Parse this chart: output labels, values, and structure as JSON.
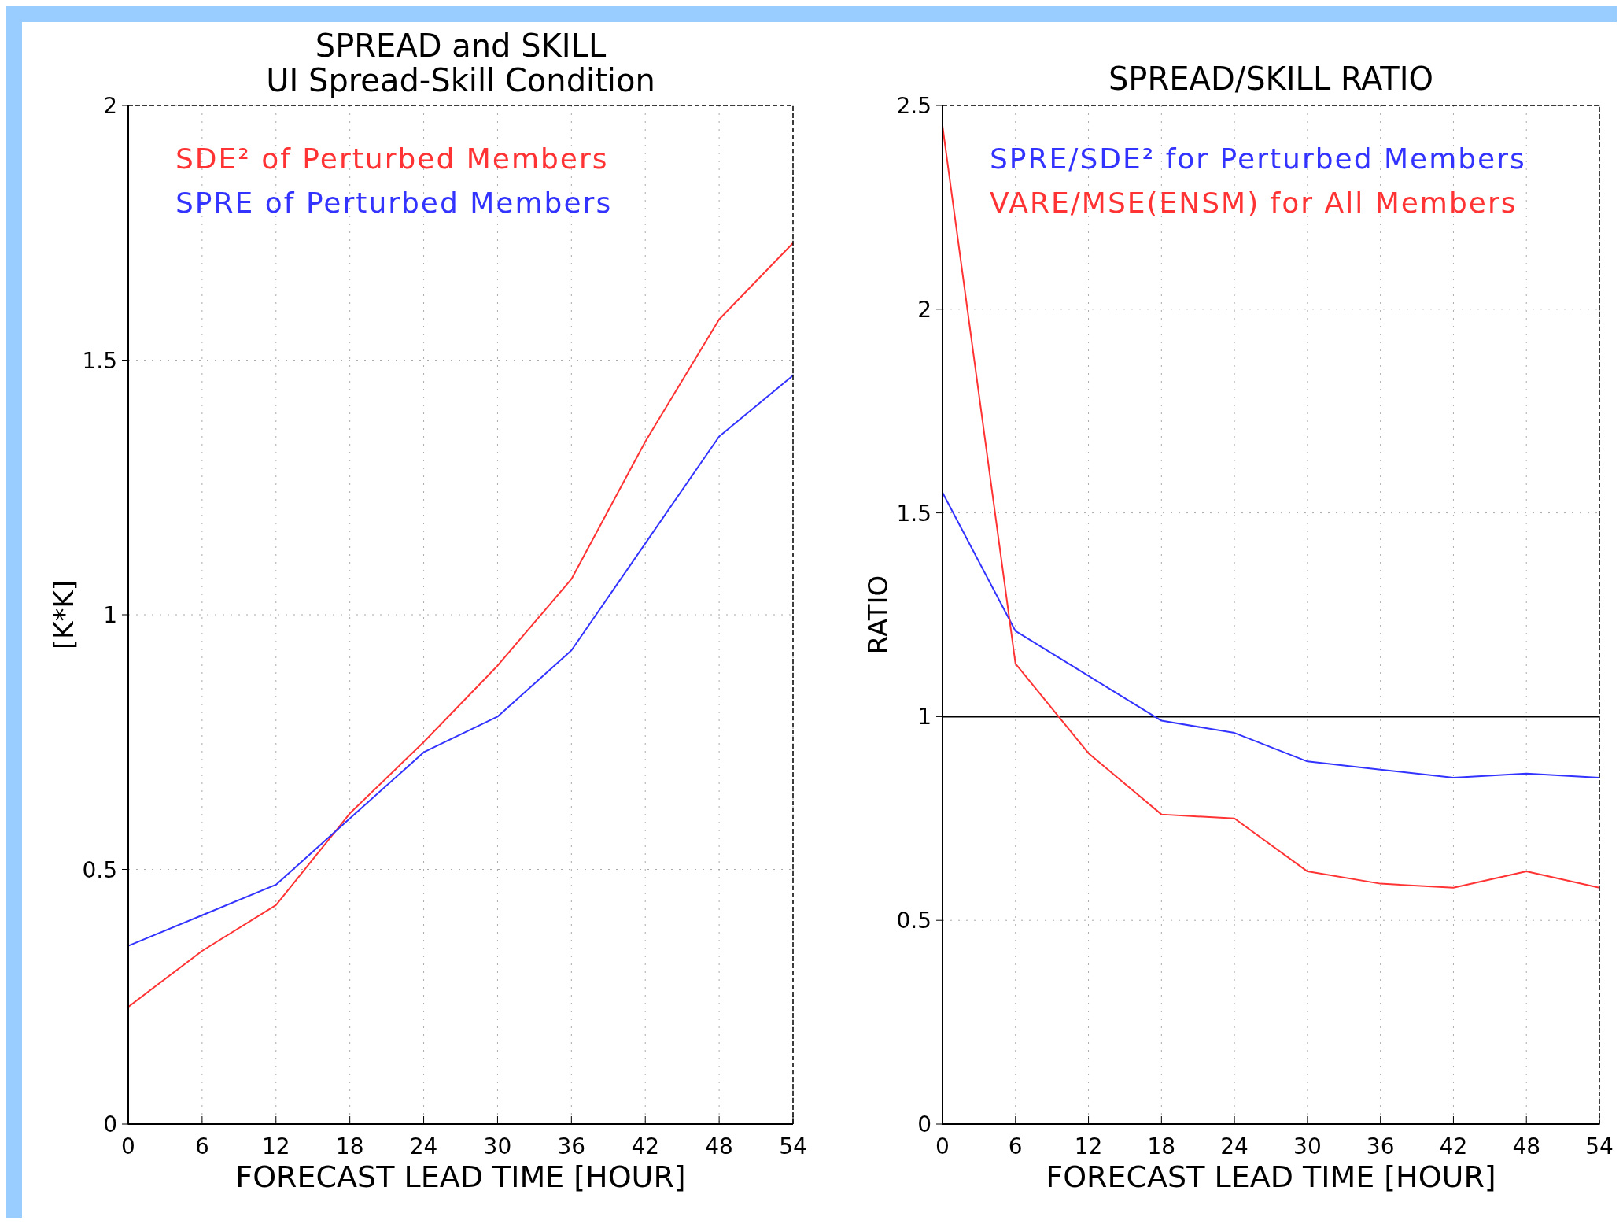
{
  "chart_data": [
    {
      "type": "line",
      "title": "SPREAD and SKILL",
      "subtitle": "UI Spread-Skill Condition",
      "xlabel": "FORECAST LEAD TIME [HOUR]",
      "ylabel": "[K*K]",
      "x": [
        0,
        6,
        12,
        18,
        24,
        30,
        36,
        42,
        48,
        54
      ],
      "series": [
        {
          "name": "SDE² of Perturbed Members",
          "color": "#ff3333",
          "values": [
            0.23,
            0.34,
            0.43,
            0.61,
            0.75,
            0.9,
            1.07,
            1.34,
            1.58,
            1.73
          ]
        },
        {
          "name": "SPRE of Perturbed Members",
          "color": "#3333ff",
          "values": [
            0.35,
            0.41,
            0.47,
            0.6,
            0.73,
            0.8,
            0.93,
            1.14,
            1.35,
            1.47
          ]
        }
      ],
      "xlim": [
        0,
        54
      ],
      "xticks": [
        0,
        6,
        12,
        18,
        24,
        30,
        36,
        42,
        48,
        54
      ],
      "ylim": [
        0,
        2
      ],
      "yticks": [
        0,
        0.5,
        1,
        1.5,
        2
      ],
      "grid": true,
      "legend": "top left"
    },
    {
      "type": "line",
      "title": "SPREAD/SKILL RATIO",
      "xlabel": "FORECAST LEAD TIME [HOUR]",
      "ylabel": "RATIO",
      "x": [
        0,
        6,
        12,
        18,
        24,
        30,
        36,
        42,
        48,
        54
      ],
      "series": [
        {
          "name": "SPRE/SDE² for Perturbed Members",
          "color": "#3333ff",
          "values": [
            1.55,
            1.21,
            1.1,
            0.99,
            0.96,
            0.89,
            0.87,
            0.85,
            0.86,
            0.85
          ]
        },
        {
          "name": "VARE/MSE(ENSM) for All Members",
          "color": "#ff3333",
          "values": [
            2.45,
            1.13,
            0.91,
            0.76,
            0.75,
            0.62,
            0.59,
            0.58,
            0.62,
            0.58
          ]
        }
      ],
      "xlim": [
        0,
        54
      ],
      "xticks": [
        0,
        6,
        12,
        18,
        24,
        30,
        36,
        42,
        48,
        54
      ],
      "ylim": [
        0,
        2.5
      ],
      "yticks": [
        0,
        0.5,
        1,
        1.5,
        2,
        2.5
      ],
      "grid": true,
      "legend": "top left",
      "ref_lines": [
        {
          "axis": "y",
          "value": 1,
          "color": "#000000"
        }
      ]
    }
  ]
}
